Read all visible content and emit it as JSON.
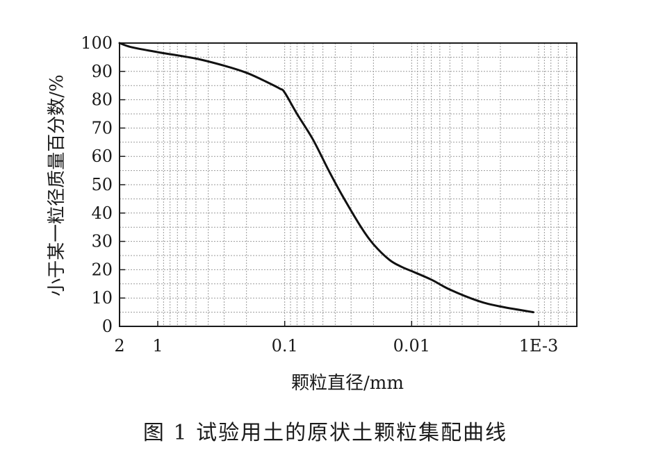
{
  "chart_data": {
    "type": "line",
    "x_scale": "log",
    "x_reversed": true,
    "xlim": [
      2,
      0.0005
    ],
    "ylim": [
      0,
      100
    ],
    "xlabel": "颗粒直径/mm",
    "ylabel": "小于某一粒径质量百分数/%",
    "x_tick_labels": [
      {
        "value": 2,
        "label": "2"
      },
      {
        "value": 1,
        "label": "1"
      },
      {
        "value": 0.1,
        "label": "0.1"
      },
      {
        "value": 0.01,
        "label": "0.01"
      },
      {
        "value": 0.001,
        "label": "1E-3"
      }
    ],
    "y_ticks": [
      0,
      10,
      20,
      30,
      40,
      50,
      60,
      70,
      80,
      90,
      100
    ],
    "grid": true,
    "legend": "none",
    "series": [
      {
        "color": "#111111",
        "points": [
          {
            "x": 2.0,
            "y": 100
          },
          {
            "x": 1.6,
            "y": 98.5
          },
          {
            "x": 1.0,
            "y": 96.8
          },
          {
            "x": 0.5,
            "y": 94.5
          },
          {
            "x": 0.3,
            "y": 92.0
          },
          {
            "x": 0.2,
            "y": 89.5
          },
          {
            "x": 0.15,
            "y": 87.0
          },
          {
            "x": 0.11,
            "y": 84.0
          },
          {
            "x": 0.1,
            "y": 82.5
          },
          {
            "x": 0.08,
            "y": 75.0
          },
          {
            "x": 0.06,
            "y": 66.0
          },
          {
            "x": 0.045,
            "y": 55.0
          },
          {
            "x": 0.035,
            "y": 46.0
          },
          {
            "x": 0.025,
            "y": 35.0
          },
          {
            "x": 0.02,
            "y": 29.0
          },
          {
            "x": 0.015,
            "y": 23.5
          },
          {
            "x": 0.012,
            "y": 21.0
          },
          {
            "x": 0.01,
            "y": 19.5
          },
          {
            "x": 0.007,
            "y": 16.5
          },
          {
            "x": 0.005,
            "y": 13.0
          },
          {
            "x": 0.003,
            "y": 9.0
          },
          {
            "x": 0.002,
            "y": 7.0
          },
          {
            "x": 0.0011,
            "y": 5.0
          }
        ]
      }
    ]
  },
  "caption": "图 1   试验用土的原状土颗粒集配曲线"
}
